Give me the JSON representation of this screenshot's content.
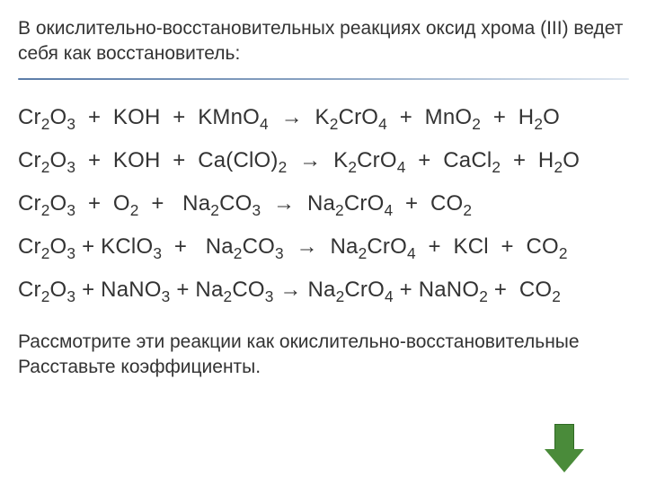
{
  "header": {
    "text": "В окислительно-восстановительных реакциях оксид хрома (III) ведет себя как восстановитель:",
    "text_color": "#333333",
    "fontsize": 21
  },
  "divider": {
    "gradient_from": "#5b7ca8",
    "gradient_mid": "#8aa3c2",
    "gradient_to": "#dfe7f0"
  },
  "equations": {
    "fontsize": 24,
    "text_color": "#333333",
    "arrow_glyph": "→",
    "items": [
      {
        "lhs": [
          {
            "base": "Cr",
            "sub": "2"
          },
          {
            "base": "O",
            "sub": "3"
          },
          {
            "plus": true
          },
          {
            "base": "KOH"
          },
          {
            "plus": true
          },
          {
            "base": "KMnO",
            "sub": "4"
          }
        ],
        "rhs": [
          {
            "base": "K",
            "sub": "2"
          },
          {
            "base": "CrO",
            "sub": "4"
          },
          {
            "plus": true
          },
          {
            "base": "MnO",
            "sub": "2"
          },
          {
            "plus": true
          },
          {
            "base": "H",
            "sub": "2"
          },
          {
            "base": "O"
          }
        ],
        "pad_lhs": "  ",
        "pad_arrow": "  "
      },
      {
        "lhs": [
          {
            "base": "Cr",
            "sub": "2"
          },
          {
            "base": "O",
            "sub": "3"
          },
          {
            "plus": true
          },
          {
            "base": "KOH"
          },
          {
            "plus": true
          },
          {
            "base": "Ca(ClO)",
            "sub": "2"
          }
        ],
        "rhs": [
          {
            "base": "K",
            "sub": "2"
          },
          {
            "base": "CrO",
            "sub": "4"
          },
          {
            "plus": true
          },
          {
            "base": "CaCl",
            "sub": "2"
          },
          {
            "plus": true
          },
          {
            "base": "H",
            "sub": "2"
          },
          {
            "base": "O"
          }
        ],
        "pad_lhs": "  ",
        "pad_arrow": "  "
      },
      {
        "lhs": [
          {
            "base": "Cr",
            "sub": "2"
          },
          {
            "base": "O",
            "sub": "3"
          },
          {
            "plus": true
          },
          {
            "base": "O",
            "sub": "2"
          },
          {
            "plus": true
          },
          {
            "base": " Na",
            "sub": "2"
          },
          {
            "base": "CO",
            "sub": "3"
          }
        ],
        "rhs": [
          {
            "base": "Na",
            "sub": "2"
          },
          {
            "base": "CrO",
            "sub": "4"
          },
          {
            "plus": true
          },
          {
            "base": "CO",
            "sub": "2"
          }
        ],
        "pad_lhs": "  ",
        "pad_arrow": "  "
      },
      {
        "lhs": [
          {
            "base": "Cr",
            "sub": "2"
          },
          {
            "base": "O",
            "sub": "3"
          },
          {
            "plus": true,
            "tight": true
          },
          {
            "base": "KClO",
            "sub": "3"
          },
          {
            "plus": true
          },
          {
            "base": " Na",
            "sub": "2"
          },
          {
            "base": "CO",
            "sub": "3"
          }
        ],
        "rhs": [
          {
            "base": "Na",
            "sub": "2"
          },
          {
            "base": "CrO",
            "sub": "4"
          },
          {
            "plus": true
          },
          {
            "base": "KCl"
          },
          {
            "plus": true
          },
          {
            "base": "CO",
            "sub": "2"
          }
        ],
        "pad_lhs": "  ",
        "pad_arrow": "  "
      },
      {
        "lhs": [
          {
            "base": "Cr",
            "sub": "2"
          },
          {
            "base": "O",
            "sub": "3"
          },
          {
            "plus": true,
            "tight": true
          },
          {
            "base": "NaNO",
            "sub": "3"
          },
          {
            "plus": true,
            "tight": true
          },
          {
            "base": "Na",
            "sub": "2"
          },
          {
            "base": "CO",
            "sub": "3"
          }
        ],
        "rhs": [
          {
            "base": "Na",
            "sub": "2"
          },
          {
            "base": "CrO",
            "sub": "4"
          },
          {
            "plus": true,
            "tight": true
          },
          {
            "base": "NaNO",
            "sub": "2"
          },
          {
            "plus": true,
            "tight": true
          },
          {
            "base": " CO",
            "sub": "2"
          }
        ],
        "pad_lhs": "  ",
        "pad_arrow": " "
      }
    ]
  },
  "footer": {
    "text": "Рассмотрите эти реакции как окислительно-восстановительные Расставьте коэффициенты.",
    "text_color": "#333333",
    "fontsize": 21
  },
  "arrow_icon": {
    "fill": "#4a8b3a",
    "border": "#2f6a24"
  },
  "background_color": "#ffffff"
}
